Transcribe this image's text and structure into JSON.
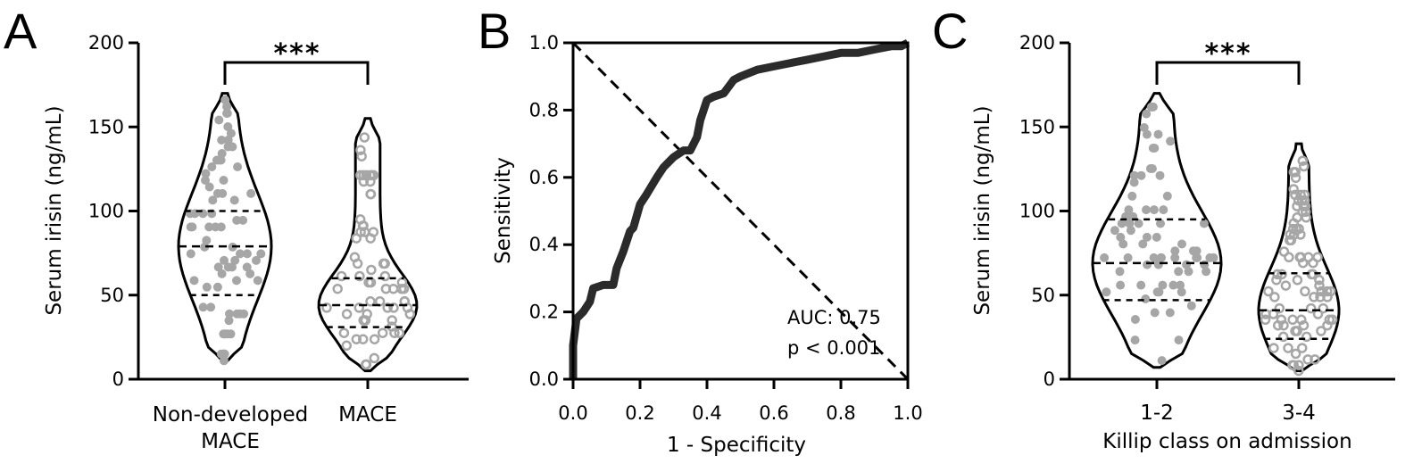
{
  "panels": {
    "A": {
      "letter": "A"
    },
    "B": {
      "letter": "B"
    },
    "C": {
      "letter": "C"
    }
  },
  "chart_data": [
    {
      "type": "violin",
      "panel": "A",
      "ylabel": "Serum irisin (ng/mL)",
      "ylim": [
        0,
        200
      ],
      "yticks": [
        0,
        50,
        100,
        150,
        200
      ],
      "categories": [
        {
          "line1": "Non-developed",
          "line2": "MACE"
        },
        {
          "line1": "MACE",
          "line2": ""
        }
      ],
      "significance": "***",
      "series": [
        {
          "median": 79,
          "q1": 50,
          "q3": 100,
          "min": 11,
          "max": 170,
          "point_style": "filled"
        },
        {
          "median": 44,
          "q1": 31,
          "q3": 60,
          "min": 5,
          "max": 155,
          "point_style": "hollow"
        }
      ],
      "point_color": "#a6a6a6"
    },
    {
      "type": "line",
      "panel": "B",
      "xlabel": "1 - Specificity",
      "ylabel": "Sensitivity",
      "xlim": [
        0,
        1
      ],
      "ylim": [
        0,
        1
      ],
      "xticks": [
        "0.0",
        "0.2",
        "0.4",
        "0.6",
        "0.8",
        "1.0"
      ],
      "yticks": [
        "0.0",
        "0.2",
        "0.4",
        "0.6",
        "0.8",
        "1.0"
      ],
      "annotations": [
        "AUC: 0.75",
        "p < 0.001"
      ],
      "roc_curve": {
        "x": [
          0.0,
          0.0,
          0.01,
          0.03,
          0.05,
          0.06,
          0.09,
          0.12,
          0.13,
          0.15,
          0.17,
          0.18,
          0.2,
          0.22,
          0.25,
          0.27,
          0.3,
          0.33,
          0.35,
          0.37,
          0.38,
          0.4,
          0.42,
          0.45,
          0.48,
          0.5,
          0.55,
          0.6,
          0.65,
          0.7,
          0.75,
          0.8,
          0.85,
          0.9,
          0.95,
          0.98,
          1.0
        ],
        "y": [
          0.0,
          0.1,
          0.18,
          0.2,
          0.23,
          0.27,
          0.28,
          0.28,
          0.33,
          0.38,
          0.44,
          0.45,
          0.52,
          0.55,
          0.6,
          0.63,
          0.66,
          0.68,
          0.68,
          0.72,
          0.77,
          0.83,
          0.84,
          0.85,
          0.89,
          0.9,
          0.92,
          0.93,
          0.94,
          0.95,
          0.96,
          0.97,
          0.97,
          0.98,
          0.99,
          0.99,
          1.0
        ]
      },
      "reference_line": {
        "x": [
          0,
          1
        ],
        "y": [
          0,
          1
        ]
      }
    },
    {
      "type": "violin",
      "panel": "C",
      "xlabel": "Killip class on admission",
      "ylabel": "Serum irisin (ng/mL)",
      "ylim": [
        0,
        200
      ],
      "yticks": [
        0,
        50,
        100,
        150,
        200
      ],
      "categories": [
        {
          "line1": "1-2",
          "line2": ""
        },
        {
          "line1": "3-4",
          "line2": ""
        }
      ],
      "significance": "***",
      "series": [
        {
          "median": 69,
          "q1": 47,
          "q3": 95,
          "min": 7,
          "max": 170,
          "point_style": "filled"
        },
        {
          "median": 41,
          "q1": 24,
          "q3": 63,
          "min": 5,
          "max": 140,
          "point_style": "hollow"
        }
      ],
      "point_color": "#a6a6a6"
    }
  ]
}
